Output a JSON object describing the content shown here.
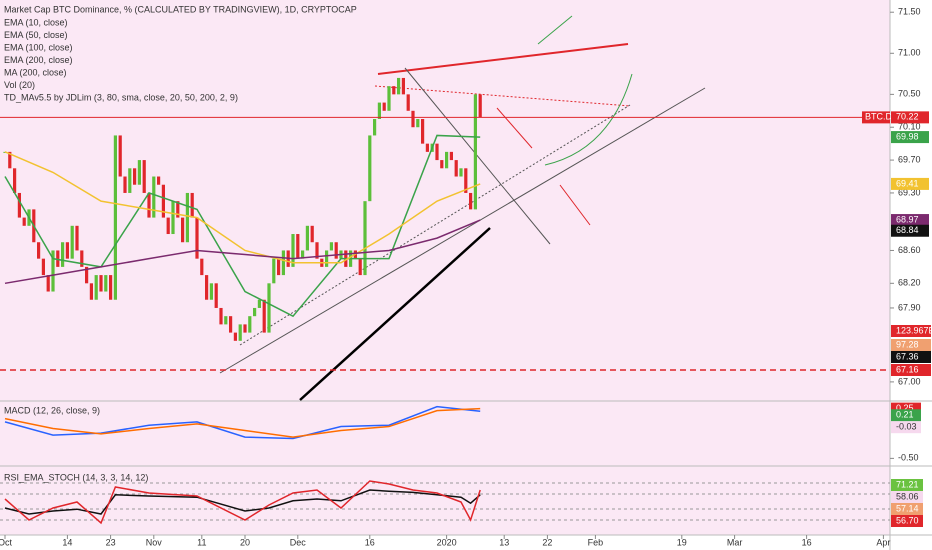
{
  "chart_data": [
    {
      "type": "candlestick",
      "title": "Market Cap BTC Dominance, % (CALCULATED BY TRADINGVIEW), 1D, CRYPTOCAP",
      "legend": [
        "EMA (10, close)",
        "EMA (50, close)",
        "EMA (100, close)",
        "EMA (200, close)",
        "MA (200, close)",
        "Vol (20)",
        "TD_MAv5.5 by JDLim (3, 80, sma, close, 20, 50, 200, 2, 9)"
      ],
      "x": [
        0,
        1,
        2,
        3,
        4,
        5,
        6,
        7,
        8,
        9,
        10,
        11,
        12,
        13,
        14,
        15,
        16,
        17,
        18,
        19,
        20,
        21,
        22,
        23,
        24,
        25,
        26,
        27,
        28,
        29,
        30,
        31,
        32,
        33,
        34,
        35,
        36,
        37,
        38,
        39,
        40,
        41,
        42,
        43,
        44,
        45,
        46,
        47,
        48,
        49,
        50,
        51,
        52,
        53,
        54,
        55,
        56,
        57,
        58,
        59,
        60,
        61,
        62,
        63,
        64,
        65,
        66,
        67,
        68,
        69,
        70,
        71,
        72,
        73,
        74,
        75,
        76,
        77,
        78,
        79,
        80,
        81,
        82,
        83,
        84,
        85,
        86,
        87,
        88,
        89,
        90,
        91,
        92,
        93,
        94,
        95,
        96,
        97,
        98,
        99
      ],
      "close": [
        69.8,
        69.6,
        69.3,
        69.0,
        68.9,
        69.1,
        68.7,
        68.5,
        68.3,
        68.1,
        68.6,
        68.4,
        68.7,
        68.5,
        68.9,
        68.6,
        68.4,
        68.2,
        68.0,
        68.3,
        68.1,
        68.3,
        68.0,
        70.0,
        69.5,
        69.3,
        69.6,
        69.4,
        69.7,
        69.3,
        69.0,
        69.5,
        69.4,
        69.0,
        68.8,
        69.2,
        69.0,
        68.7,
        69.3,
        69.0,
        68.5,
        68.3,
        68.0,
        68.2,
        67.9,
        67.7,
        67.8,
        67.6,
        67.5,
        67.7,
        67.6,
        67.8,
        67.9,
        68.0,
        67.6,
        68.2,
        68.5,
        68.3,
        68.6,
        68.4,
        68.8,
        68.5,
        68.6,
        68.9,
        68.7,
        68.5,
        68.4,
        68.6,
        68.7,
        68.5,
        68.6,
        68.4,
        68.6,
        68.5,
        68.3,
        69.2,
        70.0,
        70.2,
        70.4,
        70.3,
        70.6,
        70.5,
        70.7,
        70.5,
        70.3,
        70.1,
        70.2,
        69.9,
        69.8,
        69.9,
        69.7,
        69.6,
        69.8,
        69.7,
        69.5,
        69.6,
        69.3,
        69.1,
        70.5,
        70.22
      ],
      "color_up": "#5cbf3a",
      "color_down": "#e0262b",
      "series": [
        {
          "color": "#3aa34a",
          "x": [
            0,
            10,
            20,
            30,
            40,
            50,
            60,
            70,
            80,
            90,
            99
          ],
          "values": [
            69.5,
            68.5,
            68.4,
            69.3,
            69.1,
            68.1,
            67.8,
            68.5,
            68.5,
            70.0,
            69.98
          ]
        },
        {
          "color": "#f2c230",
          "x": [
            0,
            10,
            20,
            30,
            40,
            50,
            60,
            70,
            80,
            90,
            99
          ],
          "values": [
            69.8,
            69.55,
            69.2,
            69.1,
            69.0,
            68.6,
            68.45,
            68.45,
            68.8,
            69.2,
            69.41
          ]
        },
        {
          "color": "#7b2a6e",
          "x": [
            0,
            10,
            20,
            30,
            40,
            50,
            60,
            70,
            80,
            90,
            99
          ],
          "values": [
            68.2,
            68.3,
            68.4,
            68.5,
            68.6,
            68.55,
            68.5,
            68.55,
            68.6,
            68.75,
            68.97
          ]
        }
      ],
      "xlim": [
        -1,
        185
      ],
      "xticks": [
        {
          "value": 0,
          "label": "Oct"
        },
        {
          "value": 13,
          "label": "14"
        },
        {
          "value": 22,
          "label": "23"
        },
        {
          "value": 31,
          "label": "Nov"
        },
        {
          "value": 41,
          "label": "11"
        },
        {
          "value": 50,
          "label": "20"
        },
        {
          "value": 61,
          "label": "Dec"
        },
        {
          "value": 76,
          "label": "16"
        },
        {
          "value": 92,
          "label": "2020"
        },
        {
          "value": 104,
          "label": "13"
        },
        {
          "value": 113,
          "label": "22"
        },
        {
          "value": 123,
          "label": "Feb"
        },
        {
          "value": 141,
          "label": "19"
        },
        {
          "value": 152,
          "label": "Mar"
        },
        {
          "value": 167,
          "label": "16"
        },
        {
          "value": 183,
          "label": "Apr"
        }
      ],
      "ylim": [
        66.95,
        71.6
      ],
      "yticks": [
        {
          "value": 71.5,
          "label": "71.50"
        },
        {
          "value": 71.0,
          "label": "71.00"
        },
        {
          "value": 70.5,
          "label": "70.50"
        },
        {
          "value": 70.1,
          "label": "70.10"
        },
        {
          "value": 69.7,
          "label": "69.70"
        },
        {
          "value": 69.3,
          "label": "69.30"
        },
        {
          "value": 68.6,
          "label": "68.60"
        },
        {
          "value": 68.2,
          "label": "68.20"
        },
        {
          "value": 67.9,
          "label": "67.90"
        },
        {
          "value": 67.0,
          "label": "67.00"
        }
      ],
      "symbol": "BTC.D",
      "price_tags": [
        {
          "value": 70.22,
          "color": "#e0262b"
        },
        {
          "value": 69.98,
          "color": "#3aa34a"
        },
        {
          "value": 69.41,
          "color": "#f2c230"
        },
        {
          "value": 68.97,
          "color": "#7b2a6e"
        },
        {
          "value": 68.84,
          "color": "#111111"
        }
      ],
      "volume_tags": [
        {
          "label": "123.967B",
          "color": "#e0262b"
        },
        {
          "label": "97.28",
          "color": "#f0a070"
        },
        {
          "label": "67.36",
          "color": "#111111"
        },
        {
          "label": "67.16",
          "color": "#e0262b"
        }
      ]
    },
    {
      "type": "line",
      "title": "MACD (12, 26, close, 9)",
      "series": [
        {
          "color": "#2962ff",
          "x": [
            0,
            10,
            20,
            30,
            40,
            50,
            60,
            70,
            80,
            90,
            99
          ],
          "values": [
            0.05,
            -0.15,
            -0.12,
            0.0,
            0.05,
            -0.18,
            -0.2,
            -0.02,
            0.0,
            0.28,
            0.21
          ]
        },
        {
          "color": "#ff6d00",
          "x": [
            0,
            10,
            20,
            30,
            40,
            50,
            60,
            70,
            80,
            90,
            99
          ],
          "values": [
            0.1,
            -0.05,
            -0.13,
            -0.05,
            0.02,
            -0.08,
            -0.18,
            -0.08,
            -0.02,
            0.22,
            0.25
          ]
        }
      ],
      "ylim": [
        -0.6,
        0.35
      ],
      "yticks": [
        {
          "value": -0.5,
          "label": "-0.50"
        }
      ],
      "tags": [
        {
          "value": 0.25,
          "label": "0.25",
          "color": "#e0262b"
        },
        {
          "value": 0.21,
          "label": "0.21",
          "color": "#3aa34a"
        },
        {
          "value": -0.03,
          "label": "-0.03",
          "color": "#f6d9ee"
        }
      ]
    },
    {
      "type": "line",
      "title": "RSI_EMA_STOCH (14, 3, 3, 14, 12)",
      "series": [
        {
          "color": "#111111",
          "x": [
            0,
            5,
            10,
            15,
            20,
            23,
            30,
            40,
            50,
            55,
            60,
            65,
            70,
            76,
            80,
            85,
            90,
            95,
            97,
            99
          ],
          "values": [
            40,
            30,
            35,
            38,
            30,
            62,
            60,
            58,
            35,
            40,
            52,
            55,
            52,
            70,
            68,
            66,
            62,
            58,
            48,
            62
          ]
        },
        {
          "color": "#e0262b",
          "x": [
            0,
            5,
            10,
            15,
            20,
            23,
            30,
            40,
            50,
            55,
            60,
            65,
            70,
            76,
            80,
            85,
            90,
            95,
            97,
            99
          ],
          "values": [
            55,
            20,
            40,
            50,
            15,
            75,
            65,
            60,
            20,
            45,
            65,
            70,
            40,
            85,
            80,
            70,
            65,
            50,
            20,
            70
          ]
        }
      ],
      "ylim": [
        0,
        100
      ],
      "tags": [
        {
          "label": "71.21",
          "color": "#6ac240"
        },
        {
          "label": "58.06",
          "color": "#f6d9ee"
        },
        {
          "label": "57.14",
          "color": "#f0a070"
        },
        {
          "label": "56.70",
          "color": "#e0262b"
        }
      ]
    }
  ]
}
